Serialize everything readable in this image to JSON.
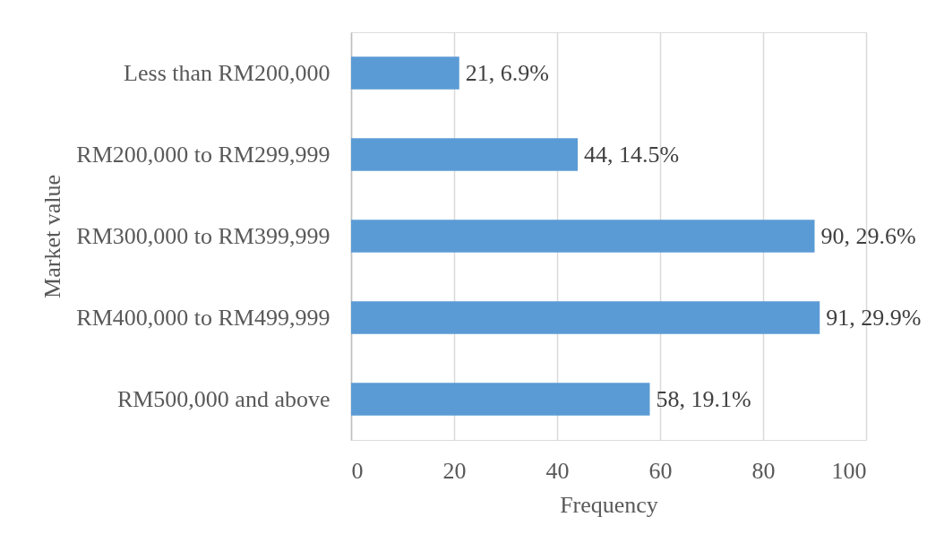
{
  "chart_data": {
    "type": "bar",
    "orientation": "horizontal",
    "xlabel": "Frequency",
    "ylabel": "Market value",
    "categories": [
      "Less than RM200,000",
      "RM200,000 to RM299,999",
      "RM300,000 to RM399,999",
      "RM400,000 to RM499,999",
      "RM500,000 and above"
    ],
    "values": [
      21,
      44,
      90,
      91,
      58
    ],
    "color": "#5b9bd5",
    "value_labels": [
      "21, 6.9%",
      "44, 14.5%",
      "90, 29.6%",
      "91, 29.9%",
      "58, 19.1%"
    ],
    "xlim": [
      0,
      100
    ],
    "xticks": [
      0,
      20,
      40,
      60,
      80,
      100
    ],
    "grid": "x"
  }
}
